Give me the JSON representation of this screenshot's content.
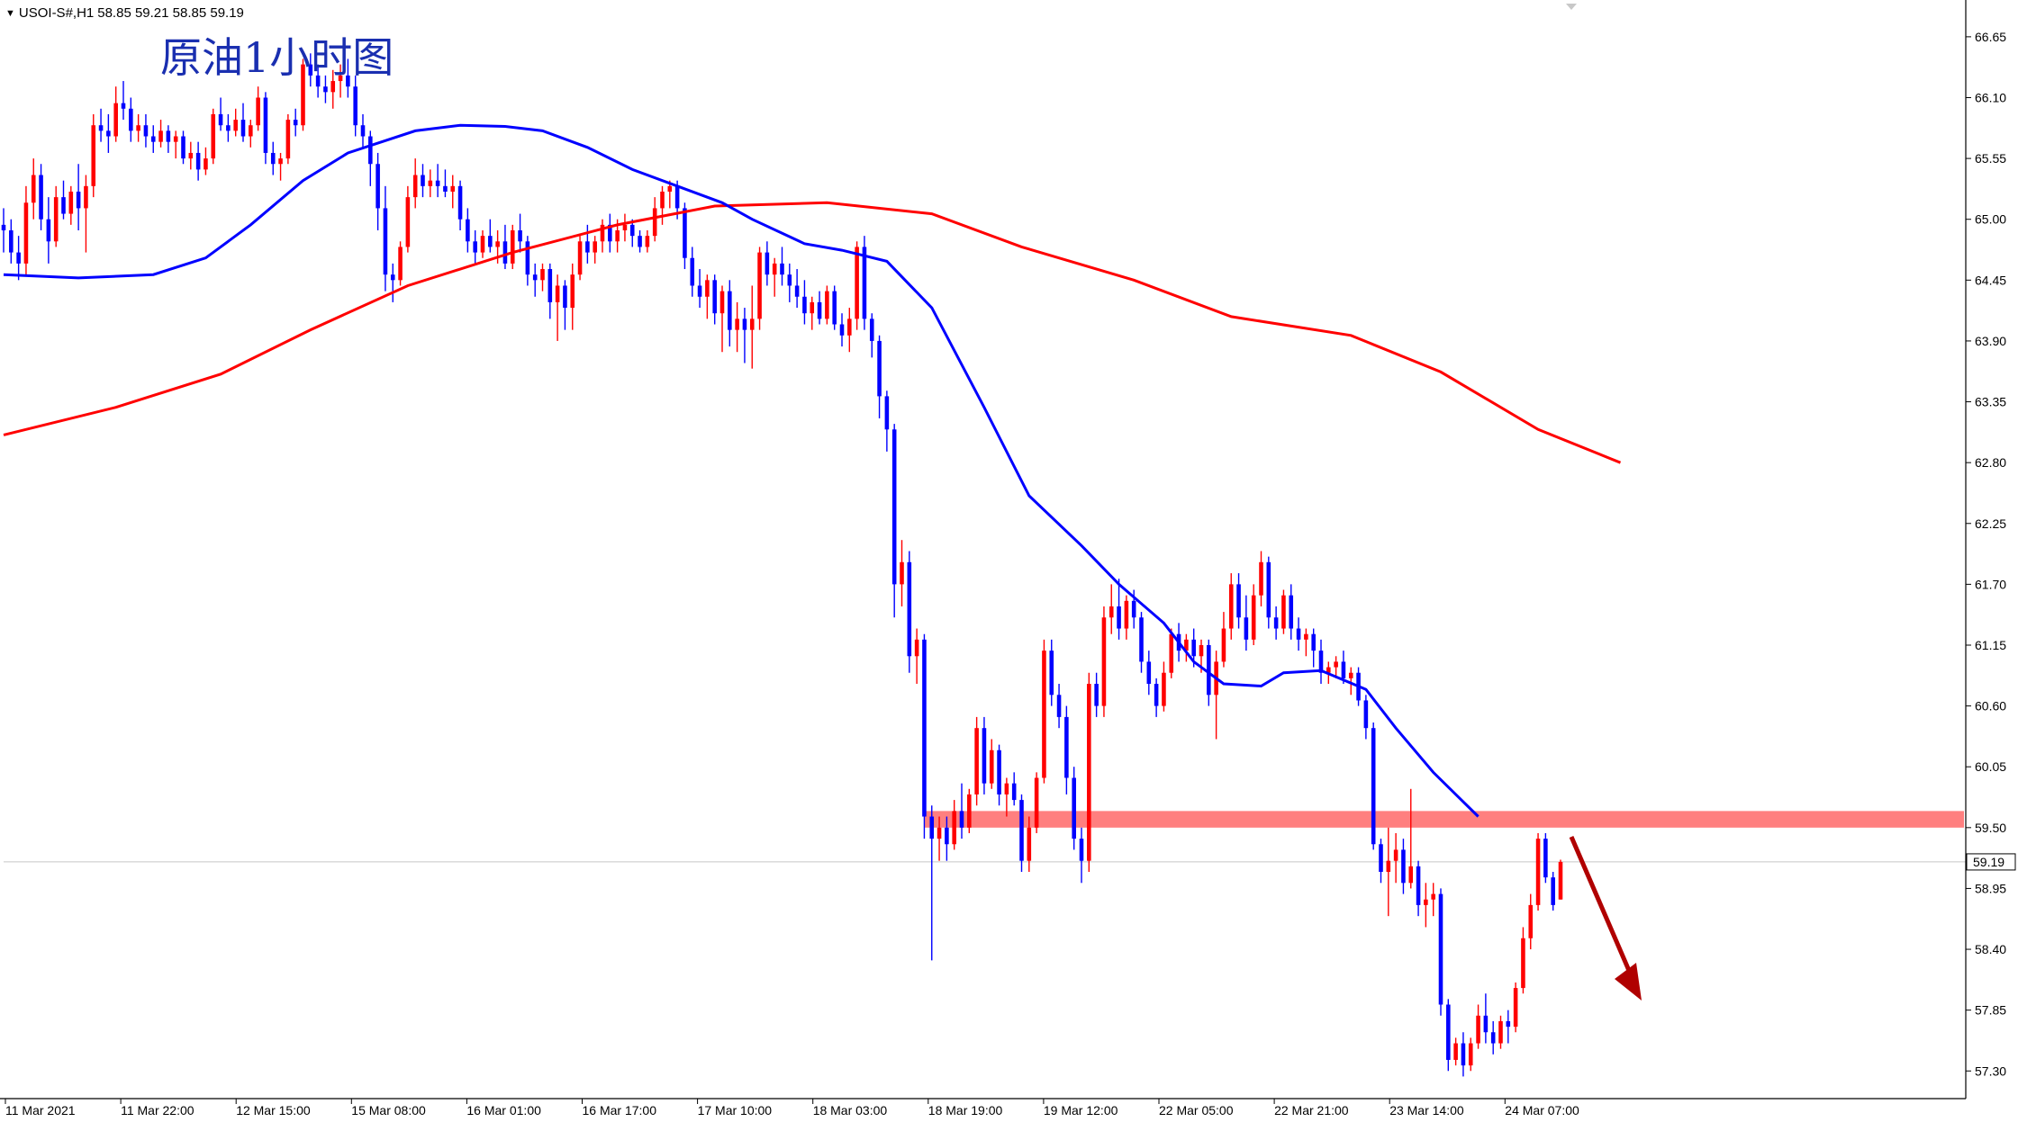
{
  "header": {
    "symbol": "USOI-S#,H1",
    "ohlc": "58.85 59.21 58.85 59.19"
  },
  "current_price_label": "59.19",
  "colors": {
    "bull": "#ff0000",
    "bear": "#0000ff",
    "ma_fast": "#0000ff",
    "ma_slow": "#ff0000",
    "resistance_band": "#ff7f7f",
    "arrow": "#b00000",
    "title": "#1a2fb0"
  },
  "chart_data": {
    "type": "candlestick",
    "title": "原油1小时图",
    "xlabel": "",
    "ylabel": "",
    "ylim": [
      57.05,
      66.95
    ],
    "y_ticks": [
      "66.65",
      "66.10",
      "65.55",
      "65.00",
      "64.45",
      "63.90",
      "63.35",
      "62.80",
      "62.25",
      "61.70",
      "61.15",
      "60.60",
      "60.05",
      "59.50",
      "58.95",
      "58.40",
      "57.85",
      "57.30"
    ],
    "x_ticks": [
      "11 Mar 2021",
      "11 Mar 22:00",
      "12 Mar 15:00",
      "15 Mar 08:00",
      "16 Mar 01:00",
      "16 Mar 17:00",
      "17 Mar 10:00",
      "18 Mar 03:00",
      "18 Mar 19:00",
      "19 Mar 12:00",
      "22 Mar 05:00",
      "22 Mar 21:00",
      "23 Mar 14:00",
      "24 Mar 07:00"
    ],
    "grid": false,
    "current_price": 59.19,
    "resistance_zone": [
      59.5,
      59.65
    ],
    "ma_fast": [
      [
        0,
        64.5
      ],
      [
        10,
        64.47
      ],
      [
        20,
        64.5
      ],
      [
        27,
        64.65
      ],
      [
        33,
        64.95
      ],
      [
        40,
        65.35
      ],
      [
        46,
        65.6
      ],
      [
        55,
        65.8
      ],
      [
        61,
        65.85
      ],
      [
        67,
        65.84
      ],
      [
        72,
        65.8
      ],
      [
        78,
        65.65
      ],
      [
        84,
        65.45
      ],
      [
        90,
        65.3
      ],
      [
        96,
        65.15
      ],
      [
        100,
        65.0
      ],
      [
        107,
        64.78
      ],
      [
        112,
        64.72
      ],
      [
        118,
        64.62
      ],
      [
        124,
        64.2
      ],
      [
        131,
        63.3
      ],
      [
        137,
        62.5
      ],
      [
        144,
        62.05
      ],
      [
        149,
        61.7
      ],
      [
        155,
        61.35
      ],
      [
        159,
        61.0
      ],
      [
        163,
        60.8
      ],
      [
        168,
        60.78
      ],
      [
        171,
        60.9
      ],
      [
        176,
        60.92
      ],
      [
        182,
        60.75
      ],
      [
        186,
        60.4
      ],
      [
        191,
        60.0
      ],
      [
        197,
        59.6
      ]
    ],
    "ma_slow": [
      [
        0,
        63.05
      ],
      [
        15,
        63.3
      ],
      [
        29,
        63.6
      ],
      [
        41,
        64.0
      ],
      [
        54,
        64.4
      ],
      [
        68,
        64.7
      ],
      [
        82,
        64.95
      ],
      [
        95,
        65.12
      ],
      [
        110,
        65.15
      ],
      [
        124,
        65.05
      ],
      [
        136,
        64.75
      ],
      [
        151,
        64.45
      ],
      [
        164,
        64.12
      ],
      [
        180,
        63.95
      ],
      [
        192,
        63.62
      ],
      [
        205,
        63.1
      ],
      [
        216,
        62.8
      ]
    ],
    "candles": [
      [
        64.95,
        65.1,
        64.7,
        64.9
      ],
      [
        64.9,
        65.0,
        64.6,
        64.7
      ],
      [
        64.7,
        64.85,
        64.45,
        64.6
      ],
      [
        64.6,
        65.3,
        64.5,
        65.15
      ],
      [
        65.15,
        65.55,
        65.0,
        65.4
      ],
      [
        65.4,
        65.5,
        64.9,
        65.0
      ],
      [
        65.0,
        65.2,
        64.6,
        64.8
      ],
      [
        64.8,
        65.3,
        64.75,
        65.2
      ],
      [
        65.2,
        65.35,
        65.0,
        65.05
      ],
      [
        65.05,
        65.3,
        64.95,
        65.25
      ],
      [
        65.25,
        65.5,
        64.9,
        65.1
      ],
      [
        65.1,
        65.4,
        64.7,
        65.3
      ],
      [
        65.3,
        65.95,
        65.2,
        65.85
      ],
      [
        65.85,
        66.0,
        65.7,
        65.8
      ],
      [
        65.8,
        65.95,
        65.6,
        65.75
      ],
      [
        65.75,
        66.2,
        65.7,
        66.05
      ],
      [
        66.05,
        66.25,
        65.9,
        66.0
      ],
      [
        66.0,
        66.1,
        65.7,
        65.8
      ],
      [
        65.8,
        65.95,
        65.7,
        65.85
      ],
      [
        65.85,
        65.95,
        65.65,
        65.75
      ],
      [
        65.75,
        65.85,
        65.6,
        65.7
      ],
      [
        65.7,
        65.9,
        65.65,
        65.8
      ],
      [
        65.8,
        65.85,
        65.6,
        65.7
      ],
      [
        65.7,
        65.8,
        65.55,
        65.75
      ],
      [
        65.75,
        65.8,
        65.5,
        65.55
      ],
      [
        65.55,
        65.7,
        65.45,
        65.6
      ],
      [
        65.6,
        65.7,
        65.35,
        65.45
      ],
      [
        65.45,
        65.65,
        65.4,
        65.55
      ],
      [
        65.55,
        66.0,
        65.5,
        65.95
      ],
      [
        65.95,
        66.1,
        65.8,
        65.85
      ],
      [
        65.85,
        65.95,
        65.7,
        65.8
      ],
      [
        65.8,
        66.0,
        65.75,
        65.9
      ],
      [
        65.9,
        66.05,
        65.7,
        65.75
      ],
      [
        65.75,
        65.9,
        65.65,
        65.85
      ],
      [
        65.85,
        66.2,
        65.8,
        66.1
      ],
      [
        66.1,
        66.15,
        65.5,
        65.6
      ],
      [
        65.6,
        65.7,
        65.4,
        65.5
      ],
      [
        65.5,
        65.6,
        65.35,
        65.55
      ],
      [
        65.55,
        65.95,
        65.5,
        65.9
      ],
      [
        65.9,
        66.0,
        65.75,
        65.85
      ],
      [
        65.85,
        66.45,
        65.8,
        66.4
      ],
      [
        66.4,
        66.5,
        66.2,
        66.3
      ],
      [
        66.3,
        66.4,
        66.1,
        66.2
      ],
      [
        66.2,
        66.3,
        66.05,
        66.15
      ],
      [
        66.15,
        66.35,
        66.0,
        66.25
      ],
      [
        66.25,
        66.4,
        66.1,
        66.3
      ],
      [
        66.3,
        66.45,
        66.1,
        66.2
      ],
      [
        66.2,
        66.3,
        65.75,
        65.85
      ],
      [
        65.85,
        65.95,
        65.65,
        65.75
      ],
      [
        65.75,
        65.8,
        65.3,
        65.5
      ],
      [
        65.5,
        65.6,
        64.9,
        65.1
      ],
      [
        65.1,
        65.3,
        64.35,
        64.5
      ],
      [
        64.5,
        64.6,
        64.25,
        64.45
      ],
      [
        64.45,
        64.8,
        64.4,
        64.75
      ],
      [
        64.75,
        65.3,
        64.7,
        65.2
      ],
      [
        65.2,
        65.55,
        65.1,
        65.4
      ],
      [
        65.4,
        65.5,
        65.2,
        65.3
      ],
      [
        65.3,
        65.45,
        65.2,
        65.35
      ],
      [
        65.35,
        65.5,
        65.2,
        65.3
      ],
      [
        65.3,
        65.45,
        65.2,
        65.25
      ],
      [
        65.25,
        65.4,
        65.1,
        65.3
      ],
      [
        65.3,
        65.35,
        64.9,
        65.0
      ],
      [
        65.0,
        65.1,
        64.7,
        64.8
      ],
      [
        64.8,
        64.9,
        64.6,
        64.7
      ],
      [
        64.7,
        64.9,
        64.65,
        64.85
      ],
      [
        64.85,
        65.0,
        64.7,
        64.75
      ],
      [
        64.75,
        64.9,
        64.6,
        64.8
      ],
      [
        64.8,
        64.95,
        64.55,
        64.6
      ],
      [
        64.6,
        64.95,
        64.55,
        64.9
      ],
      [
        64.9,
        65.05,
        64.7,
        64.8
      ],
      [
        64.8,
        64.85,
        64.4,
        64.5
      ],
      [
        64.5,
        64.6,
        64.3,
        64.45
      ],
      [
        64.45,
        64.6,
        64.35,
        64.55
      ],
      [
        64.55,
        64.6,
        64.1,
        64.25
      ],
      [
        64.25,
        64.5,
        63.9,
        64.4
      ],
      [
        64.4,
        64.45,
        64.0,
        64.2
      ],
      [
        64.2,
        64.6,
        64.0,
        64.5
      ],
      [
        64.5,
        64.85,
        64.45,
        64.8
      ],
      [
        64.8,
        64.95,
        64.6,
        64.7
      ],
      [
        64.7,
        64.85,
        64.6,
        64.8
      ],
      [
        64.8,
        65.0,
        64.7,
        64.95
      ],
      [
        64.95,
        65.05,
        64.7,
        64.8
      ],
      [
        64.8,
        65.0,
        64.7,
        64.9
      ],
      [
        64.9,
        65.05,
        64.8,
        64.95
      ],
      [
        64.95,
        65.0,
        64.75,
        64.85
      ],
      [
        64.85,
        64.9,
        64.7,
        64.75
      ],
      [
        64.75,
        64.9,
        64.7,
        64.85
      ],
      [
        64.85,
        65.2,
        64.8,
        65.1
      ],
      [
        65.1,
        65.3,
        64.95,
        65.25
      ],
      [
        65.25,
        65.35,
        65.1,
        65.3
      ],
      [
        65.3,
        65.35,
        65.0,
        65.1
      ],
      [
        65.1,
        65.15,
        64.55,
        64.65
      ],
      [
        64.65,
        64.75,
        64.3,
        64.4
      ],
      [
        64.4,
        64.55,
        64.2,
        64.3
      ],
      [
        64.3,
        64.5,
        64.1,
        64.45
      ],
      [
        64.45,
        64.5,
        64.05,
        64.15
      ],
      [
        64.15,
        64.4,
        63.8,
        64.35
      ],
      [
        64.35,
        64.45,
        63.85,
        64.0
      ],
      [
        64.0,
        64.25,
        63.8,
        64.1
      ],
      [
        64.1,
        64.2,
        63.7,
        64.0
      ],
      [
        64.0,
        64.4,
        63.65,
        64.1
      ],
      [
        64.1,
        64.75,
        64.0,
        64.7
      ],
      [
        64.7,
        64.8,
        64.4,
        64.5
      ],
      [
        64.5,
        64.65,
        64.3,
        64.6
      ],
      [
        64.6,
        64.75,
        64.4,
        64.5
      ],
      [
        64.5,
        64.6,
        64.25,
        64.4
      ],
      [
        64.4,
        64.55,
        64.2,
        64.3
      ],
      [
        64.3,
        64.45,
        64.05,
        64.15
      ],
      [
        64.15,
        64.3,
        64.0,
        64.25
      ],
      [
        64.25,
        64.35,
        64.05,
        64.1
      ],
      [
        64.1,
        64.4,
        64.05,
        64.35
      ],
      [
        64.35,
        64.4,
        64.0,
        64.05
      ],
      [
        64.05,
        64.15,
        63.85,
        63.95
      ],
      [
        63.95,
        64.2,
        63.8,
        64.1
      ],
      [
        64.1,
        64.8,
        64.0,
        64.75
      ],
      [
        64.75,
        64.85,
        64.0,
        64.1
      ],
      [
        64.1,
        64.15,
        63.75,
        63.9
      ],
      [
        63.9,
        63.95,
        63.2,
        63.4
      ],
      [
        63.4,
        63.45,
        62.9,
        63.1
      ],
      [
        63.1,
        63.15,
        61.4,
        61.7
      ],
      [
        61.7,
        62.1,
        61.5,
        61.9
      ],
      [
        61.9,
        62.0,
        60.9,
        61.05
      ],
      [
        61.05,
        61.3,
        60.8,
        61.2
      ],
      [
        61.2,
        61.25,
        59.4,
        59.6
      ],
      [
        59.6,
        59.7,
        58.3,
        59.4
      ],
      [
        59.4,
        59.6,
        59.2,
        59.5
      ],
      [
        59.5,
        59.6,
        59.2,
        59.35
      ],
      [
        59.35,
        59.75,
        59.3,
        59.65
      ],
      [
        59.65,
        59.9,
        59.4,
        59.5
      ],
      [
        59.5,
        59.85,
        59.45,
        59.8
      ],
      [
        59.8,
        60.5,
        59.7,
        60.4
      ],
      [
        60.4,
        60.5,
        59.8,
        59.9
      ],
      [
        59.9,
        60.3,
        59.85,
        60.2
      ],
      [
        60.2,
        60.25,
        59.7,
        59.8
      ],
      [
        59.8,
        59.95,
        59.6,
        59.9
      ],
      [
        59.9,
        60.0,
        59.7,
        59.75
      ],
      [
        59.75,
        59.8,
        59.1,
        59.2
      ],
      [
        59.2,
        59.6,
        59.1,
        59.5
      ],
      [
        59.5,
        60.0,
        59.45,
        59.95
      ],
      [
        59.95,
        61.2,
        59.9,
        61.1
      ],
      [
        61.1,
        61.2,
        60.6,
        60.7
      ],
      [
        60.7,
        60.8,
        60.4,
        60.5
      ],
      [
        60.5,
        60.6,
        59.8,
        59.95
      ],
      [
        59.95,
        60.05,
        59.3,
        59.4
      ],
      [
        59.4,
        59.5,
        59.0,
        59.2
      ],
      [
        59.2,
        60.9,
        59.1,
        60.8
      ],
      [
        60.8,
        60.9,
        60.5,
        60.6
      ],
      [
        60.6,
        61.5,
        60.5,
        61.4
      ],
      [
        61.4,
        61.7,
        61.25,
        61.5
      ],
      [
        61.5,
        61.75,
        61.2,
        61.3
      ],
      [
        61.3,
        61.6,
        61.2,
        61.55
      ],
      [
        61.55,
        61.65,
        61.3,
        61.4
      ],
      [
        61.4,
        61.45,
        60.9,
        61.0
      ],
      [
        61.0,
        61.1,
        60.7,
        60.8
      ],
      [
        60.8,
        60.85,
        60.5,
        60.6
      ],
      [
        60.6,
        61.0,
        60.55,
        60.9
      ],
      [
        60.9,
        61.3,
        60.85,
        61.25
      ],
      [
        61.25,
        61.35,
        61.0,
        61.1
      ],
      [
        61.1,
        61.25,
        61.0,
        61.2
      ],
      [
        61.2,
        61.3,
        60.95,
        61.05
      ],
      [
        61.05,
        61.2,
        60.9,
        61.15
      ],
      [
        61.15,
        61.2,
        60.6,
        60.7
      ],
      [
        60.7,
        61.1,
        60.3,
        61.0
      ],
      [
        61.0,
        61.45,
        60.95,
        61.3
      ],
      [
        61.3,
        61.8,
        61.2,
        61.7
      ],
      [
        61.7,
        61.8,
        61.3,
        61.4
      ],
      [
        61.4,
        61.6,
        61.1,
        61.2
      ],
      [
        61.2,
        61.7,
        61.15,
        61.6
      ],
      [
        61.6,
        62.0,
        61.5,
        61.9
      ],
      [
        61.9,
        61.95,
        61.3,
        61.4
      ],
      [
        61.4,
        61.5,
        61.2,
        61.3
      ],
      [
        61.3,
        61.65,
        61.25,
        61.6
      ],
      [
        61.6,
        61.7,
        61.2,
        61.3
      ],
      [
        61.3,
        61.4,
        61.1,
        61.2
      ],
      [
        61.2,
        61.3,
        61.05,
        61.25
      ],
      [
        61.25,
        61.3,
        60.95,
        61.1
      ],
      [
        61.1,
        61.2,
        60.8,
        60.9
      ],
      [
        60.9,
        61.0,
        60.8,
        60.95
      ],
      [
        60.95,
        61.05,
        60.85,
        61.0
      ],
      [
        61.0,
        61.1,
        60.8,
        60.85
      ],
      [
        60.85,
        60.95,
        60.7,
        60.9
      ],
      [
        60.9,
        60.95,
        60.6,
        60.65
      ],
      [
        60.65,
        60.7,
        60.3,
        60.4
      ],
      [
        60.4,
        60.45,
        59.3,
        59.35
      ],
      [
        59.35,
        59.4,
        59.0,
        59.1
      ],
      [
        59.1,
        59.5,
        58.7,
        59.2
      ],
      [
        59.2,
        59.45,
        59.0,
        59.3
      ],
      [
        59.3,
        59.4,
        58.9,
        59.0
      ],
      [
        59.0,
        59.85,
        58.95,
        59.15
      ],
      [
        59.15,
        59.2,
        58.7,
        58.8
      ],
      [
        58.8,
        59.0,
        58.6,
        58.85
      ],
      [
        58.85,
        59.0,
        58.7,
        58.9
      ],
      [
        58.9,
        58.95,
        57.8,
        57.9
      ],
      [
        57.9,
        57.95,
        57.3,
        57.4
      ],
      [
        57.4,
        57.6,
        57.35,
        57.55
      ],
      [
        57.55,
        57.65,
        57.25,
        57.35
      ],
      [
        57.35,
        57.6,
        57.3,
        57.55
      ],
      [
        57.55,
        57.9,
        57.5,
        57.8
      ],
      [
        57.8,
        58.0,
        57.55,
        57.65
      ],
      [
        57.65,
        57.75,
        57.45,
        57.55
      ],
      [
        57.55,
        57.8,
        57.5,
        57.75
      ],
      [
        57.75,
        57.85,
        57.55,
        57.7
      ],
      [
        57.7,
        58.1,
        57.65,
        58.05
      ],
      [
        58.05,
        58.6,
        58.0,
        58.5
      ],
      [
        58.5,
        58.9,
        58.4,
        58.8
      ],
      [
        58.8,
        59.45,
        58.75,
        59.4
      ],
      [
        59.4,
        59.45,
        59.0,
        59.05
      ],
      [
        59.05,
        59.1,
        58.75,
        58.8
      ],
      [
        58.85,
        59.21,
        58.85,
        59.19
      ]
    ]
  }
}
